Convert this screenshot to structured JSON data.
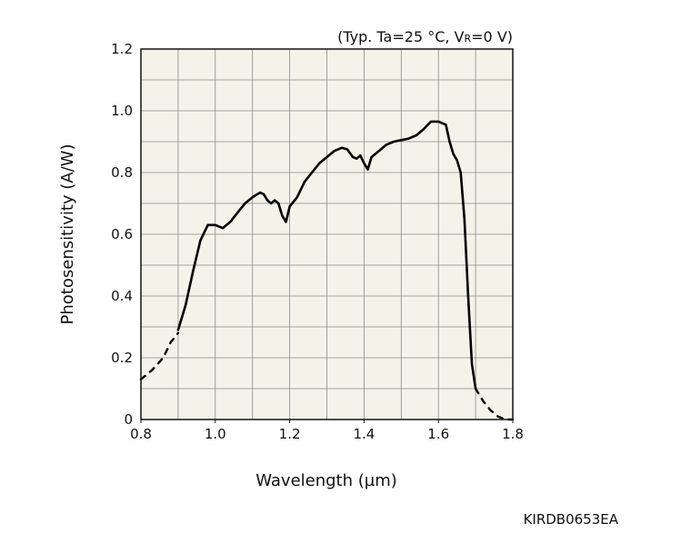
{
  "chart_data": {
    "type": "line",
    "title": "",
    "conditions": {
      "prefix": "(Typ. Ta=25 °C, V",
      "subscript": "R",
      "suffix": "=0 V)"
    },
    "xlabel": "Wavelength (µm)",
    "ylabel": "Photosensitivity (A/W)",
    "xlim": [
      0.8,
      1.8
    ],
    "ylim": [
      0,
      1.2
    ],
    "xticks": [
      0.8,
      1.0,
      1.2,
      1.4,
      1.6,
      1.8
    ],
    "xtick_labels": [
      "0.8",
      "1.0",
      "1.2",
      "1.4",
      "1.6",
      "1.8"
    ],
    "yticks": [
      0,
      0.2,
      0.4,
      0.6,
      0.8,
      1.0,
      1.2
    ],
    "ytick_labels": [
      "0",
      "0.2",
      "0.4",
      "0.6",
      "0.8",
      "1.0",
      "1.2"
    ],
    "grid": true,
    "grid_minor_x_step": 0.1,
    "grid_minor_y_step": 0.1,
    "plot_background": "#f3f3ea",
    "line_color": "#000000",
    "series": [
      {
        "style": "dashed",
        "segment": "short-wavelength extrapolation",
        "x": [
          0.8,
          0.83,
          0.86,
          0.88,
          0.9
        ],
        "y": [
          0.13,
          0.16,
          0.2,
          0.25,
          0.28
        ]
      },
      {
        "style": "solid",
        "segment": "measured",
        "x": [
          0.9,
          0.92,
          0.94,
          0.96,
          0.98,
          1.0,
          1.02,
          1.04,
          1.06,
          1.08,
          1.1,
          1.12,
          1.13,
          1.14,
          1.15,
          1.16,
          1.17,
          1.18,
          1.19,
          1.2,
          1.22,
          1.24,
          1.26,
          1.28,
          1.3,
          1.32,
          1.34,
          1.355,
          1.37,
          1.38,
          1.39,
          1.4,
          1.41,
          1.42,
          1.44,
          1.46,
          1.48,
          1.5,
          1.52,
          1.54,
          1.56,
          1.58,
          1.6,
          1.62,
          1.63,
          1.64,
          1.65,
          1.66,
          1.67,
          1.68,
          1.69,
          1.7
        ],
        "y": [
          0.29,
          0.37,
          0.48,
          0.58,
          0.63,
          0.63,
          0.62,
          0.64,
          0.67,
          0.7,
          0.72,
          0.735,
          0.73,
          0.71,
          0.7,
          0.71,
          0.7,
          0.66,
          0.64,
          0.69,
          0.72,
          0.77,
          0.8,
          0.83,
          0.85,
          0.87,
          0.88,
          0.875,
          0.85,
          0.845,
          0.855,
          0.83,
          0.81,
          0.85,
          0.87,
          0.89,
          0.9,
          0.905,
          0.91,
          0.92,
          0.94,
          0.965,
          0.965,
          0.955,
          0.9,
          0.86,
          0.84,
          0.8,
          0.65,
          0.4,
          0.18,
          0.1
        ]
      },
      {
        "style": "dashed",
        "segment": "long-wavelength extrapolation",
        "x": [
          1.7,
          1.72,
          1.74,
          1.76,
          1.78,
          1.8
        ],
        "y": [
          0.1,
          0.06,
          0.03,
          0.01,
          0.0,
          0.0
        ]
      }
    ]
  },
  "figure_code": "KIRDB0653EA"
}
